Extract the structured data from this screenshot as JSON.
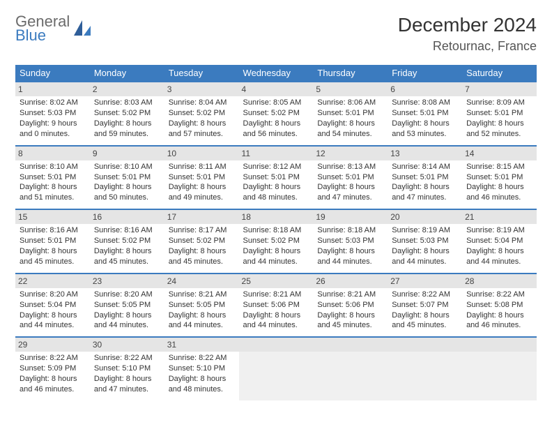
{
  "brand": {
    "top": "General",
    "bottom": "Blue"
  },
  "title": "December 2024",
  "location": "Retournac, France",
  "colors": {
    "header_bg": "#3b7bbf",
    "header_fg": "#ffffff",
    "daynum_bg": "#e5e5e5",
    "empty_bg": "#f0f0f0",
    "text": "#333333"
  },
  "day_names": [
    "Sunday",
    "Monday",
    "Tuesday",
    "Wednesday",
    "Thursday",
    "Friday",
    "Saturday"
  ],
  "weeks": [
    [
      {
        "n": "1",
        "sr": "Sunrise: 8:02 AM",
        "ss": "Sunset: 5:03 PM",
        "d1": "Daylight: 9 hours",
        "d2": "and 0 minutes."
      },
      {
        "n": "2",
        "sr": "Sunrise: 8:03 AM",
        "ss": "Sunset: 5:02 PM",
        "d1": "Daylight: 8 hours",
        "d2": "and 59 minutes."
      },
      {
        "n": "3",
        "sr": "Sunrise: 8:04 AM",
        "ss": "Sunset: 5:02 PM",
        "d1": "Daylight: 8 hours",
        "d2": "and 57 minutes."
      },
      {
        "n": "4",
        "sr": "Sunrise: 8:05 AM",
        "ss": "Sunset: 5:02 PM",
        "d1": "Daylight: 8 hours",
        "d2": "and 56 minutes."
      },
      {
        "n": "5",
        "sr": "Sunrise: 8:06 AM",
        "ss": "Sunset: 5:01 PM",
        "d1": "Daylight: 8 hours",
        "d2": "and 54 minutes."
      },
      {
        "n": "6",
        "sr": "Sunrise: 8:08 AM",
        "ss": "Sunset: 5:01 PM",
        "d1": "Daylight: 8 hours",
        "d2": "and 53 minutes."
      },
      {
        "n": "7",
        "sr": "Sunrise: 8:09 AM",
        "ss": "Sunset: 5:01 PM",
        "d1": "Daylight: 8 hours",
        "d2": "and 52 minutes."
      }
    ],
    [
      {
        "n": "8",
        "sr": "Sunrise: 8:10 AM",
        "ss": "Sunset: 5:01 PM",
        "d1": "Daylight: 8 hours",
        "d2": "and 51 minutes."
      },
      {
        "n": "9",
        "sr": "Sunrise: 8:10 AM",
        "ss": "Sunset: 5:01 PM",
        "d1": "Daylight: 8 hours",
        "d2": "and 50 minutes."
      },
      {
        "n": "10",
        "sr": "Sunrise: 8:11 AM",
        "ss": "Sunset: 5:01 PM",
        "d1": "Daylight: 8 hours",
        "d2": "and 49 minutes."
      },
      {
        "n": "11",
        "sr": "Sunrise: 8:12 AM",
        "ss": "Sunset: 5:01 PM",
        "d1": "Daylight: 8 hours",
        "d2": "and 48 minutes."
      },
      {
        "n": "12",
        "sr": "Sunrise: 8:13 AM",
        "ss": "Sunset: 5:01 PM",
        "d1": "Daylight: 8 hours",
        "d2": "and 47 minutes."
      },
      {
        "n": "13",
        "sr": "Sunrise: 8:14 AM",
        "ss": "Sunset: 5:01 PM",
        "d1": "Daylight: 8 hours",
        "d2": "and 47 minutes."
      },
      {
        "n": "14",
        "sr": "Sunrise: 8:15 AM",
        "ss": "Sunset: 5:01 PM",
        "d1": "Daylight: 8 hours",
        "d2": "and 46 minutes."
      }
    ],
    [
      {
        "n": "15",
        "sr": "Sunrise: 8:16 AM",
        "ss": "Sunset: 5:01 PM",
        "d1": "Daylight: 8 hours",
        "d2": "and 45 minutes."
      },
      {
        "n": "16",
        "sr": "Sunrise: 8:16 AM",
        "ss": "Sunset: 5:02 PM",
        "d1": "Daylight: 8 hours",
        "d2": "and 45 minutes."
      },
      {
        "n": "17",
        "sr": "Sunrise: 8:17 AM",
        "ss": "Sunset: 5:02 PM",
        "d1": "Daylight: 8 hours",
        "d2": "and 45 minutes."
      },
      {
        "n": "18",
        "sr": "Sunrise: 8:18 AM",
        "ss": "Sunset: 5:02 PM",
        "d1": "Daylight: 8 hours",
        "d2": "and 44 minutes."
      },
      {
        "n": "19",
        "sr": "Sunrise: 8:18 AM",
        "ss": "Sunset: 5:03 PM",
        "d1": "Daylight: 8 hours",
        "d2": "and 44 minutes."
      },
      {
        "n": "20",
        "sr": "Sunrise: 8:19 AM",
        "ss": "Sunset: 5:03 PM",
        "d1": "Daylight: 8 hours",
        "d2": "and 44 minutes."
      },
      {
        "n": "21",
        "sr": "Sunrise: 8:19 AM",
        "ss": "Sunset: 5:04 PM",
        "d1": "Daylight: 8 hours",
        "d2": "and 44 minutes."
      }
    ],
    [
      {
        "n": "22",
        "sr": "Sunrise: 8:20 AM",
        "ss": "Sunset: 5:04 PM",
        "d1": "Daylight: 8 hours",
        "d2": "and 44 minutes."
      },
      {
        "n": "23",
        "sr": "Sunrise: 8:20 AM",
        "ss": "Sunset: 5:05 PM",
        "d1": "Daylight: 8 hours",
        "d2": "and 44 minutes."
      },
      {
        "n": "24",
        "sr": "Sunrise: 8:21 AM",
        "ss": "Sunset: 5:05 PM",
        "d1": "Daylight: 8 hours",
        "d2": "and 44 minutes."
      },
      {
        "n": "25",
        "sr": "Sunrise: 8:21 AM",
        "ss": "Sunset: 5:06 PM",
        "d1": "Daylight: 8 hours",
        "d2": "and 44 minutes."
      },
      {
        "n": "26",
        "sr": "Sunrise: 8:21 AM",
        "ss": "Sunset: 5:06 PM",
        "d1": "Daylight: 8 hours",
        "d2": "and 45 minutes."
      },
      {
        "n": "27",
        "sr": "Sunrise: 8:22 AM",
        "ss": "Sunset: 5:07 PM",
        "d1": "Daylight: 8 hours",
        "d2": "and 45 minutes."
      },
      {
        "n": "28",
        "sr": "Sunrise: 8:22 AM",
        "ss": "Sunset: 5:08 PM",
        "d1": "Daylight: 8 hours",
        "d2": "and 46 minutes."
      }
    ],
    [
      {
        "n": "29",
        "sr": "Sunrise: 8:22 AM",
        "ss": "Sunset: 5:09 PM",
        "d1": "Daylight: 8 hours",
        "d2": "and 46 minutes."
      },
      {
        "n": "30",
        "sr": "Sunrise: 8:22 AM",
        "ss": "Sunset: 5:10 PM",
        "d1": "Daylight: 8 hours",
        "d2": "and 47 minutes."
      },
      {
        "n": "31",
        "sr": "Sunrise: 8:22 AM",
        "ss": "Sunset: 5:10 PM",
        "d1": "Daylight: 8 hours",
        "d2": "and 48 minutes."
      },
      null,
      null,
      null,
      null
    ]
  ]
}
